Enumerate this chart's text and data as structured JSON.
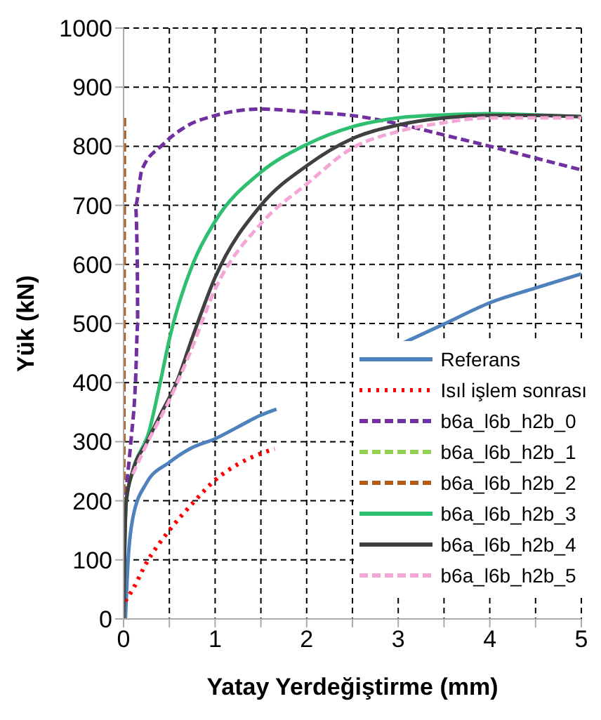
{
  "chart_data": {
    "type": "line",
    "xlabel": "Yatay Yerdeğiştirme (mm)",
    "ylabel": "Yük (kN)",
    "xlim": [
      0,
      5
    ],
    "xticks": [
      0,
      {
        "value": 0.5,
        "label": null
      },
      1,
      {
        "value": 1.5,
        "label": null
      },
      2,
      {
        "value": 2.5,
        "label": null
      },
      3,
      {
        "value": 3.5,
        "label": null
      },
      4,
      {
        "value": 4.5,
        "label": null
      },
      5
    ],
    "ylim": [
      0,
      1000
    ],
    "yticks": [
      0,
      100,
      200,
      300,
      400,
      500,
      600,
      700,
      800,
      900,
      1000
    ],
    "grid": true,
    "legend": "bottom right",
    "marker": "none",
    "series": [
      {
        "name": "Referans",
        "color": "#4f81bd",
        "line_style": "solid",
        "x": [
          0.02,
          0.05,
          0.1,
          0.25,
          0.5,
          0.75,
          1,
          1.25,
          1.5,
          1.67,
          2.3,
          3.04,
          3.5,
          4,
          4.5,
          5
        ],
        "values": [
          0,
          100,
          170,
          230,
          265,
          290,
          305,
          325,
          345,
          355,
          null,
          466,
          499,
          535,
          560,
          584
        ]
      },
      {
        "name": "Isıl işlem sonrası",
        "color": "#ff0000",
        "line_style": "dotted",
        "x": [
          0.02,
          0.1,
          0.25,
          0.5,
          0.75,
          1,
          1.25,
          1.5,
          1.65
        ],
        "values": [
          30,
          50,
          95,
          150,
          195,
          235,
          262,
          280,
          288
        ]
      },
      {
        "name": "b6a_l6b_h2b_0",
        "color": "#7030a0",
        "line_style": "dashed",
        "x": [
          0.02,
          0.08,
          0.13,
          0.155,
          0.15,
          0.13,
          0.2,
          0.43,
          0.7,
          1,
          1.5,
          2,
          2.5,
          3,
          3.5,
          4,
          4.5,
          5
        ],
        "values": [
          210,
          300,
          400,
          500,
          600,
          700,
          760,
          803,
          835,
          852,
          863,
          858,
          852,
          838,
          819,
          800,
          780,
          760
        ]
      },
      {
        "name": "b6a_l6b_h2b_1",
        "color": "#92d050",
        "line_style": "dashed"
      },
      {
        "name": "b6a_l6b_h2b_2",
        "color": "#b05c1a",
        "line_style": "dashed",
        "x": [
          0,
          0.01
        ],
        "values": [
          0,
          855
        ]
      },
      {
        "name": "b6a_l6b_h2b_3",
        "color": "#2fbf71",
        "line_style": "solid",
        "x": [
          0,
          0.01,
          0.03,
          0.1,
          0.28,
          0.4,
          0.51,
          0.76,
          1,
          1.5,
          2,
          2.5,
          3,
          3.5,
          4,
          4.5,
          5
        ],
        "values": [
          0,
          100,
          200,
          250,
          318,
          400,
          480,
          602,
          673,
          756,
          803,
          833,
          848,
          853,
          855,
          853,
          850
        ]
      },
      {
        "name": "b6a_l6b_h2b_4",
        "color": "#404040",
        "line_style": "solid",
        "x": [
          0,
          0.01,
          0.03,
          0.1,
          0.25,
          0.4,
          0.58,
          0.76,
          1,
          1.5,
          2,
          2.5,
          3,
          3.5,
          4,
          4.5,
          5
        ],
        "values": [
          0,
          100,
          200,
          250,
          298,
          345,
          401,
          480,
          578,
          700,
          767,
          813,
          836,
          848,
          852,
          852,
          850
        ]
      },
      {
        "name": "b6a_l6b_h2b_5",
        "color": "#f4a6d7",
        "line_style": "dashed",
        "x": [
          0.1,
          0.25,
          0.5,
          0.73,
          1,
          1.5,
          2,
          2.5,
          3,
          3.5,
          4,
          4.5,
          5
        ],
        "values": [
          245,
          295,
          370,
          452,
          558,
          669,
          736,
          797,
          825,
          840,
          848,
          848,
          848
        ]
      }
    ]
  }
}
